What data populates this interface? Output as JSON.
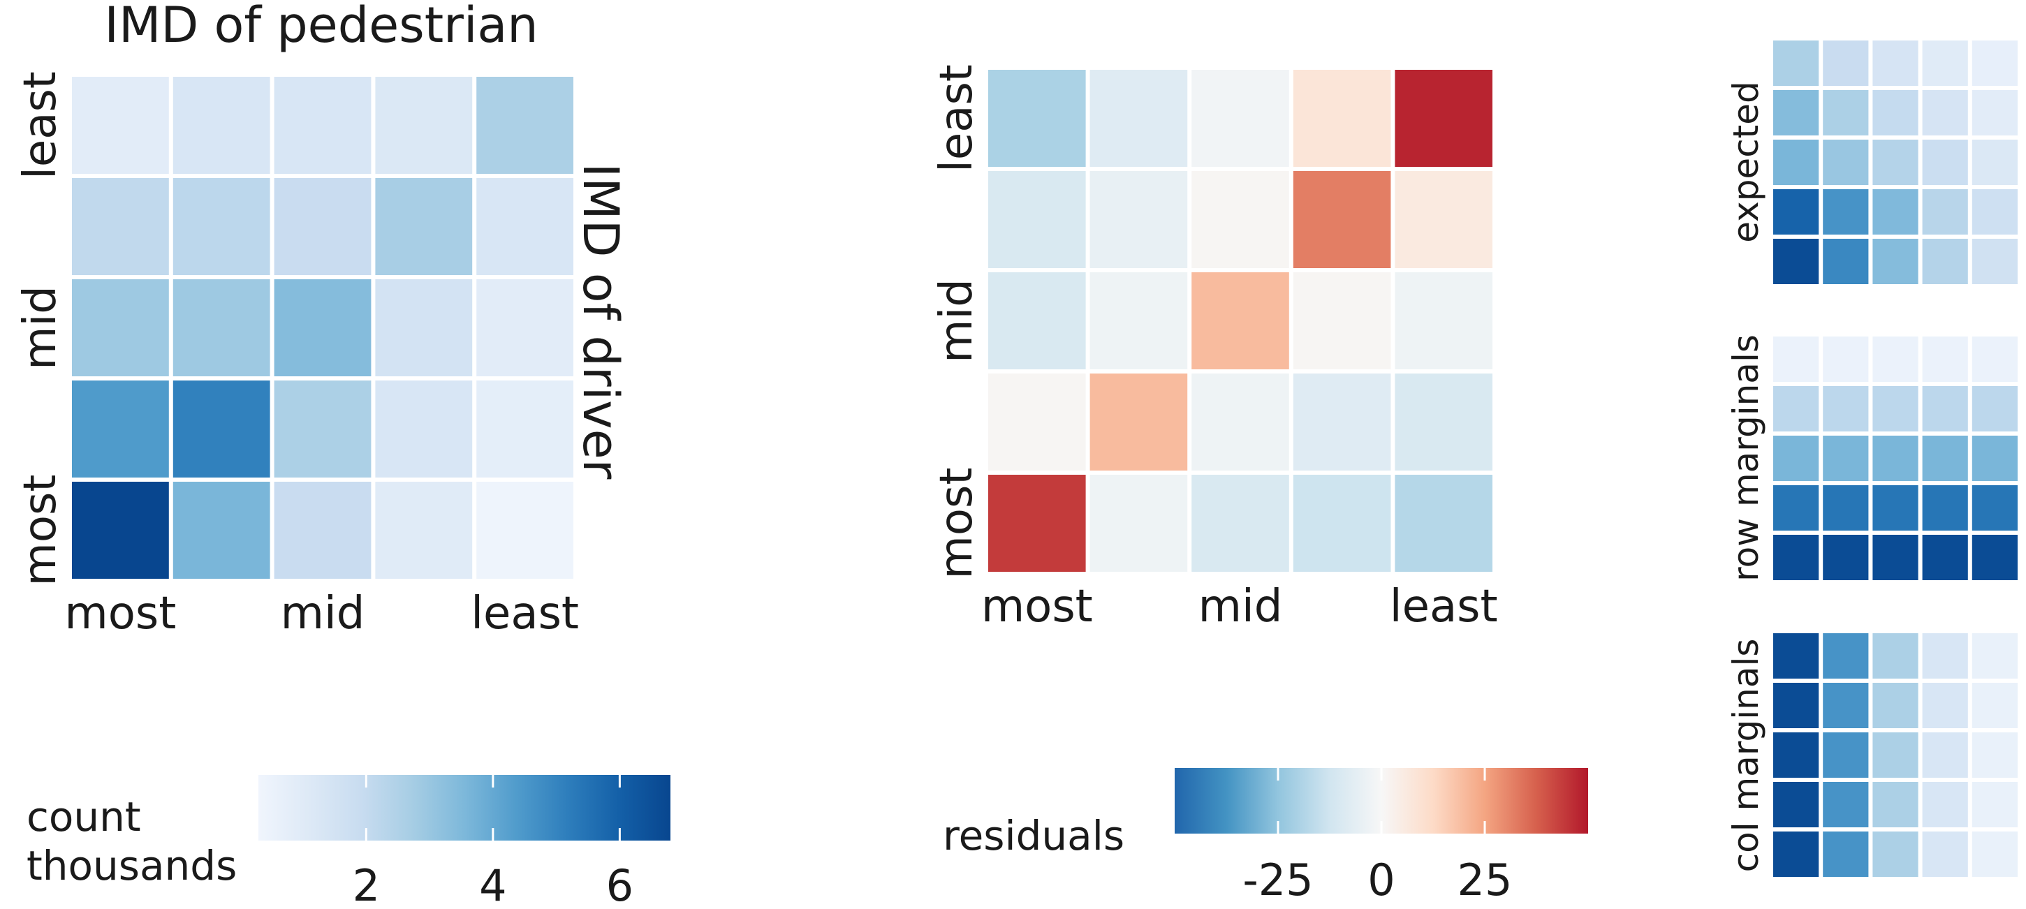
{
  "chart_data": [
    {
      "type": "heatmap",
      "title": "IMD of pedestrian",
      "ylabel": "IMD of driver",
      "x_tick_labels": [
        "most",
        "mid",
        "least"
      ],
      "y_tick_labels": [
        "least",
        "mid",
        "most"
      ],
      "rows_top_to_bottom": [
        "least",
        "",
        "mid",
        "",
        "most"
      ],
      "values": [
        [
          0.9,
          1.3,
          1.3,
          1.2,
          2.6
        ],
        [
          2.1,
          2.2,
          1.9,
          2.7,
          1.3
        ],
        [
          2.9,
          2.9,
          3.4,
          1.5,
          0.9
        ],
        [
          4.4,
          5.1,
          2.6,
          1.3,
          0.8
        ],
        [
          6.8,
          3.6,
          1.9,
          1.0,
          0.4
        ]
      ],
      "colorbar": {
        "label": [
          "count",
          "thousands"
        ],
        "range": [
          0.3,
          6.8
        ],
        "ticks": [
          2,
          4,
          6
        ],
        "scale": "Blues"
      }
    },
    {
      "type": "heatmap",
      "x_tick_labels": [
        "most",
        "mid",
        "least"
      ],
      "y_tick_labels": [
        "least",
        "mid",
        "most"
      ],
      "values": [
        [
          -20,
          -8,
          -2,
          8,
          48
        ],
        [
          -10,
          -5,
          1,
          32,
          6
        ],
        [
          -10,
          -3,
          20,
          1,
          -3
        ],
        [
          1,
          20,
          -3,
          -8,
          -10
        ],
        [
          44,
          -3,
          -10,
          -13,
          -18
        ]
      ],
      "colorbar": {
        "label": "residuals",
        "range": [
          -50,
          50
        ],
        "ticks": [
          -25,
          0,
          25
        ],
        "scale": "RdBu_r"
      }
    },
    {
      "type": "heatmap",
      "ylabel": "expected",
      "values": [
        [
          2.6,
          1.9,
          1.4,
          1.0,
          0.7
        ],
        [
          3.4,
          2.6,
          2.0,
          1.4,
          0.9
        ],
        [
          3.6,
          3.0,
          2.4,
          1.8,
          1.2
        ],
        [
          5.9,
          4.6,
          3.5,
          2.3,
          1.7
        ],
        [
          6.6,
          4.9,
          3.4,
          2.4,
          1.6
        ]
      ]
    },
    {
      "type": "heatmap",
      "ylabel": "row marginals",
      "values": [
        [
          0.5,
          0.5,
          0.5,
          0.5,
          0.5
        ],
        [
          2.2,
          2.2,
          2.2,
          2.2,
          2.2
        ],
        [
          3.6,
          3.6,
          3.6,
          3.6,
          3.6
        ],
        [
          5.4,
          5.4,
          5.4,
          5.4,
          5.4
        ],
        [
          6.6,
          6.6,
          6.6,
          6.6,
          6.6
        ]
      ]
    },
    {
      "type": "heatmap",
      "ylabel": "col marginals",
      "values": [
        [
          6.6,
          4.6,
          2.6,
          1.3,
          0.6
        ],
        [
          6.6,
          4.6,
          2.6,
          1.3,
          0.6
        ],
        [
          6.6,
          4.6,
          2.6,
          1.3,
          0.6
        ],
        [
          6.6,
          4.6,
          2.6,
          1.3,
          0.6
        ],
        [
          6.6,
          4.6,
          2.6,
          1.3,
          0.6
        ]
      ]
    }
  ]
}
